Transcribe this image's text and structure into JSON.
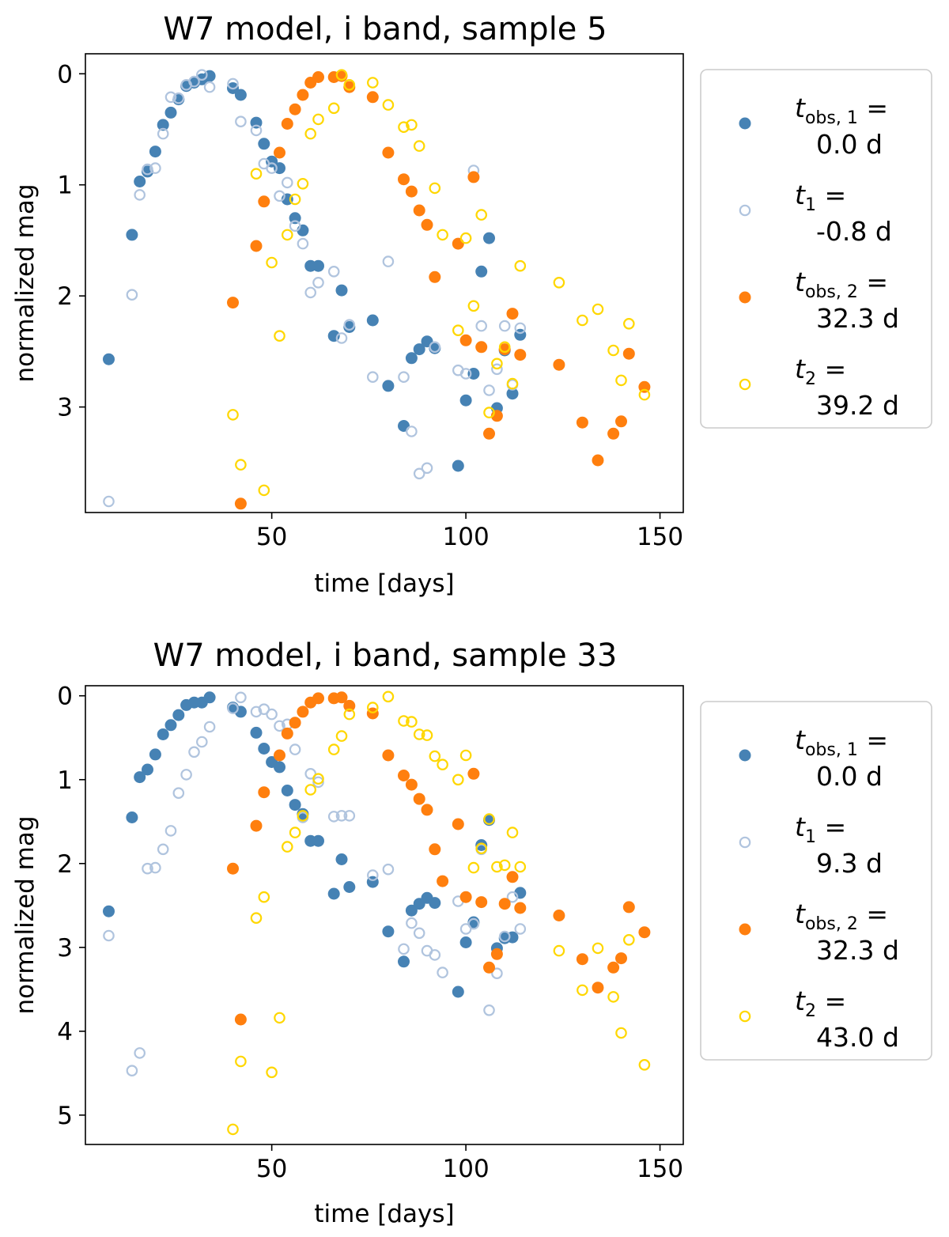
{
  "chart_data": [
    {
      "type": "scatter",
      "title": "W7 model, i band, sample 5",
      "xlabel": "time [days]",
      "ylabel": "normalized mag",
      "xlim": [
        2,
        156
      ],
      "ylim": [
        3.95,
        -0.18
      ],
      "y_inverted": true,
      "xticks": [
        50,
        100,
        150
      ],
      "yticks": [
        0,
        1,
        2,
        3
      ],
      "grid": false,
      "legend_position": "outside-right",
      "series": [
        {
          "name": "t_obs,1 = 0.0 d",
          "legend_var": "t",
          "legend_sub": "obs, 1",
          "legend_val": "0.0 d",
          "color": "#4682b4",
          "filled": true,
          "x": [
            8,
            14,
            16,
            18,
            20,
            22,
            24,
            26,
            28,
            30,
            32,
            34,
            40,
            42,
            46,
            48,
            50,
            52,
            54,
            56,
            58,
            60,
            62,
            66,
            68,
            70,
            76,
            80,
            84,
            86,
            88,
            90,
            92,
            98,
            100,
            102,
            104,
            106,
            108,
            110,
            112,
            114
          ],
          "y": [
            2.57,
            1.45,
            0.97,
            0.88,
            0.7,
            0.46,
            0.35,
            0.23,
            0.11,
            0.08,
            0.05,
            0.02,
            0.13,
            0.19,
            0.44,
            0.63,
            0.79,
            0.85,
            1.13,
            1.3,
            1.41,
            1.73,
            1.73,
            2.36,
            1.95,
            2.28,
            2.22,
            2.81,
            3.17,
            2.56,
            2.48,
            2.41,
            2.47,
            3.53,
            2.94,
            2.7,
            1.78,
            1.48,
            3.01,
            2.49,
            2.88,
            2.35
          ]
        },
        {
          "name": "t1 = -0.8 d",
          "legend_var": "t",
          "legend_sub": "1",
          "legend_val": "-0.8 d",
          "color": "#b0c4de",
          "filled": false,
          "x": [
            8,
            14,
            16,
            18,
            20,
            22,
            24,
            26,
            28,
            30,
            32,
            34,
            40,
            42,
            46,
            48,
            50,
            52,
            54,
            56,
            58,
            60,
            62,
            66,
            68,
            70,
            76,
            80,
            84,
            86,
            88,
            90,
            92,
            98,
            100,
            102,
            104,
            106,
            108,
            110,
            112,
            114
          ],
          "y": [
            3.85,
            1.99,
            1.09,
            0.86,
            0.85,
            0.54,
            0.21,
            0.22,
            0.1,
            0.07,
            0.01,
            0.12,
            0.09,
            0.43,
            0.51,
            0.81,
            0.85,
            1.1,
            0.98,
            1.37,
            1.53,
            1.97,
            1.88,
            1.78,
            2.38,
            2.26,
            2.73,
            1.69,
            2.73,
            3.22,
            3.6,
            3.55,
            2.46,
            2.67,
            2.7,
            0.87,
            2.27,
            2.85,
            2.66,
            2.27,
            2.8,
            2.29
          ]
        },
        {
          "name": "t_obs,2 = 32.3 d",
          "legend_var": "t",
          "legend_sub": "obs, 2",
          "legend_val": "32.3 d",
          "color": "#ff7f0e",
          "filled": true,
          "x": [
            40,
            42,
            46,
            48,
            52,
            54,
            56,
            58,
            60,
            62,
            66,
            68,
            70,
            76,
            80,
            84,
            86,
            88,
            90,
            92,
            98,
            100,
            102,
            104,
            106,
            108,
            110,
            112,
            114,
            124,
            130,
            134,
            138,
            140,
            142,
            146
          ],
          "y": [
            2.06,
            3.87,
            1.55,
            1.15,
            0.71,
            0.45,
            0.32,
            0.19,
            0.08,
            0.03,
            0.03,
            0.02,
            0.12,
            0.21,
            0.71,
            0.95,
            1.06,
            1.23,
            1.36,
            1.83,
            1.53,
            2.4,
            0.93,
            2.46,
            3.24,
            3.08,
            2.48,
            2.16,
            2.53,
            2.62,
            3.14,
            3.48,
            3.24,
            3.13,
            2.52,
            2.82
          ]
        },
        {
          "name": "t2 = 39.2 d",
          "legend_var": "t",
          "legend_sub": "2",
          "legend_val": "39.2 d",
          "color": "#ffd700",
          "filled": false,
          "x": [
            40,
            42,
            46,
            48,
            50,
            52,
            54,
            56,
            58,
            60,
            62,
            66,
            68,
            70,
            76,
            80,
            84,
            86,
            88,
            92,
            94,
            98,
            100,
            102,
            104,
            106,
            108,
            110,
            112,
            114,
            124,
            130,
            134,
            138,
            140,
            142,
            146
          ],
          "y": [
            3.07,
            3.52,
            0.9,
            3.75,
            1.7,
            2.36,
            1.45,
            1.13,
            0.99,
            0.54,
            0.41,
            0.31,
            0.01,
            0.1,
            0.08,
            0.28,
            0.48,
            0.46,
            0.65,
            1.03,
            1.45,
            2.31,
            1.48,
            2.09,
            1.27,
            3.05,
            2.61,
            2.46,
            2.79,
            1.73,
            1.88,
            2.22,
            2.12,
            2.49,
            2.76,
            2.25,
            2.89
          ]
        }
      ]
    },
    {
      "type": "scatter",
      "title": "W7 model, i band, sample 33",
      "xlabel": "time [days]",
      "ylabel": "normalized mag",
      "xlim": [
        2,
        156
      ],
      "ylim": [
        5.35,
        -0.12
      ],
      "y_inverted": true,
      "xticks": [
        50,
        100,
        150
      ],
      "yticks": [
        0,
        1,
        2,
        3,
        4,
        5
      ],
      "grid": false,
      "legend_position": "outside-right",
      "series": [
        {
          "name": "t_obs,1 = 0.0 d",
          "legend_var": "t",
          "legend_sub": "obs, 1",
          "legend_val": "0.0 d",
          "color": "#4682b4",
          "filled": true,
          "x": [
            8,
            14,
            16,
            18,
            20,
            22,
            24,
            26,
            28,
            30,
            32,
            34,
            40,
            42,
            46,
            48,
            50,
            52,
            54,
            56,
            58,
            60,
            62,
            66,
            68,
            70,
            76,
            80,
            84,
            86,
            88,
            90,
            92,
            98,
            100,
            102,
            104,
            106,
            108,
            110,
            112,
            114
          ],
          "y": [
            2.57,
            1.45,
            0.97,
            0.88,
            0.7,
            0.46,
            0.35,
            0.23,
            0.11,
            0.08,
            0.08,
            0.02,
            0.14,
            0.19,
            0.44,
            0.63,
            0.79,
            0.85,
            1.13,
            1.3,
            1.41,
            1.73,
            1.73,
            2.36,
            1.95,
            2.28,
            2.22,
            2.81,
            3.17,
            2.56,
            2.48,
            2.41,
            2.47,
            3.53,
            2.94,
            2.7,
            1.78,
            1.48,
            3.01,
            2.89,
            2.88,
            2.35
          ]
        },
        {
          "name": "t1 = 9.3 d",
          "legend_var": "t",
          "legend_sub": "1",
          "legend_val": "9.3 d",
          "color": "#b0c4de",
          "filled": false,
          "x": [
            8,
            14,
            16,
            18,
            20,
            22,
            24,
            26,
            28,
            30,
            32,
            34,
            40,
            42,
            46,
            48,
            50,
            52,
            54,
            56,
            58,
            60,
            62,
            66,
            68,
            70,
            76,
            80,
            84,
            86,
            88,
            90,
            92,
            94,
            98,
            100,
            102,
            104,
            106,
            108,
            110,
            112,
            114
          ],
          "y": [
            2.86,
            4.47,
            4.26,
            2.06,
            2.05,
            1.83,
            1.61,
            1.16,
            0.94,
            0.67,
            0.55,
            0.37,
            0.15,
            0.02,
            0.19,
            0.16,
            0.22,
            0.36,
            0.34,
            0.64,
            1.45,
            0.93,
            1.03,
            1.44,
            1.43,
            1.43,
            2.14,
            2.07,
            3.02,
            2.71,
            2.83,
            3.04,
            3.09,
            3.3,
            2.45,
            2.78,
            2.72,
            1.83,
            3.75,
            3.31,
            2.87,
            2.4,
            2.78
          ]
        },
        {
          "name": "t_obs,2 = 32.3 d",
          "legend_var": "t",
          "legend_sub": "obs, 2",
          "legend_val": "32.3 d",
          "color": "#ff7f0e",
          "filled": true,
          "x": [
            40,
            42,
            46,
            48,
            52,
            54,
            56,
            58,
            60,
            62,
            66,
            68,
            70,
            76,
            80,
            84,
            86,
            88,
            90,
            92,
            94,
            98,
            100,
            102,
            104,
            106,
            108,
            110,
            112,
            114,
            124,
            130,
            134,
            138,
            140,
            142,
            146
          ],
          "y": [
            2.06,
            3.86,
            1.55,
            1.15,
            0.71,
            0.45,
            0.32,
            0.19,
            0.08,
            0.03,
            0.03,
            0.02,
            0.12,
            0.21,
            0.71,
            0.95,
            1.06,
            1.23,
            1.36,
            1.83,
            2.21,
            1.53,
            2.4,
            0.93,
            2.46,
            3.24,
            3.08,
            2.48,
            2.16,
            2.53,
            2.62,
            3.14,
            3.48,
            3.24,
            3.13,
            2.52,
            2.82
          ]
        },
        {
          "name": "t2 = 43.0 d",
          "legend_var": "t",
          "legend_sub": "2",
          "legend_val": "43.0 d",
          "color": "#ffd700",
          "filled": false,
          "x": [
            40,
            42,
            46,
            48,
            50,
            52,
            54,
            56,
            58,
            60,
            62,
            66,
            68,
            70,
            76,
            80,
            84,
            86,
            88,
            90,
            92,
            94,
            98,
            100,
            102,
            104,
            106,
            108,
            110,
            112,
            114,
            124,
            130,
            134,
            138,
            140,
            142,
            146
          ],
          "y": [
            5.17,
            4.36,
            2.65,
            2.4,
            4.49,
            3.84,
            1.8,
            1.63,
            1.43,
            1.12,
            0.99,
            0.64,
            0.48,
            0.22,
            0.14,
            0.01,
            0.3,
            0.31,
            0.46,
            0.47,
            0.72,
            0.82,
            1.0,
            0.71,
            2.05,
            1.82,
            1.47,
            2.04,
            2.02,
            1.63,
            2.04,
            3.04,
            3.51,
            3.01,
            3.59,
            4.02,
            2.91,
            4.4
          ]
        }
      ]
    }
  ]
}
